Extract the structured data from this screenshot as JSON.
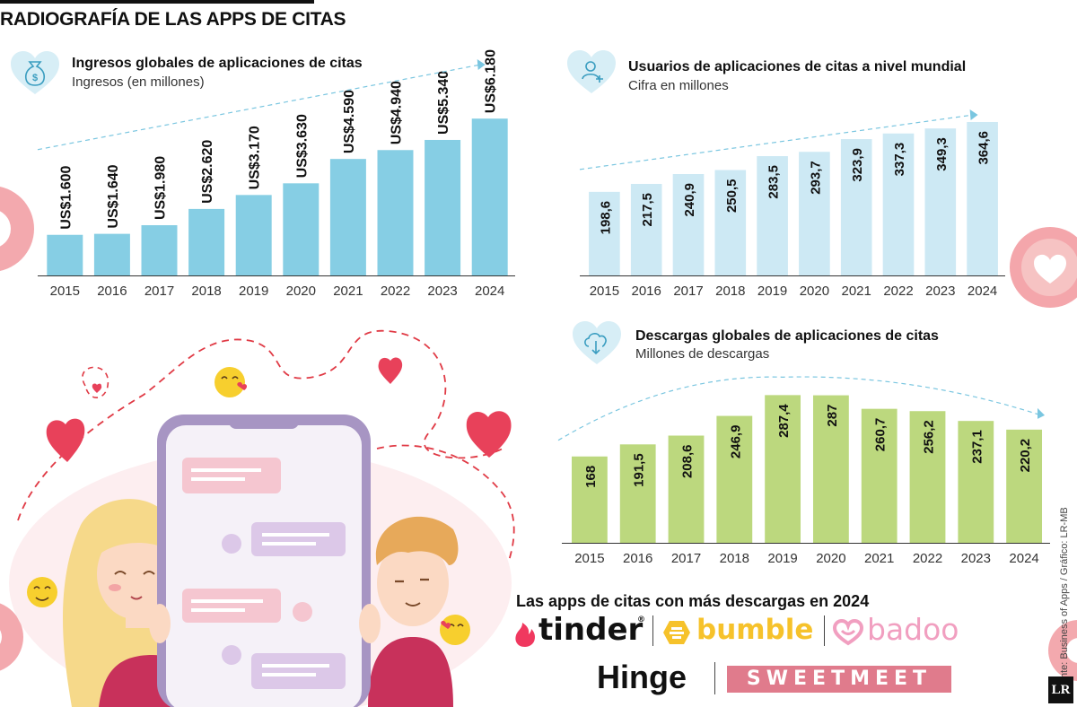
{
  "page": {
    "title": "RADIOGRAFÍA DE LAS APPS DE CITAS",
    "source": "Fuente: Business of Apps / Gráfico: LR-MB",
    "badge": "LR"
  },
  "colors": {
    "revenue": "#86cee4",
    "users": "#cde9f4",
    "downloads": "#bcd87e",
    "heart": "#e0324e",
    "icon_heart": "#d7eef6"
  },
  "icons": {
    "revenue": "money-bag-icon",
    "users": "user-add-icon",
    "downloads": "cloud-download-icon"
  },
  "chart_data": [
    {
      "type": "bar",
      "title": "Ingresos globales de aplicaciones de citas",
      "subtitle": "Ingresos (en  millones)",
      "categories": [
        "2015",
        "2016",
        "2017",
        "2018",
        "2019",
        "2020",
        "2021",
        "2022",
        "2023",
        "2024"
      ],
      "values": [
        1600,
        1640,
        1980,
        2620,
        3170,
        3630,
        4590,
        4940,
        5340,
        6180
      ],
      "labels": [
        "US$1.600",
        "US$1.640",
        "US$1.980",
        "US$2.620",
        "US$3.170",
        "US$3.630",
        "US$4.590",
        "US$4.940",
        "US$5.340",
        "US$6.180"
      ],
      "ylim": [
        0,
        10500
      ],
      "grid": false,
      "trend": "up"
    },
    {
      "type": "bar",
      "title": "Usuarios de aplicaciones de citas a nivel mundial",
      "subtitle": "Cifra en millones",
      "categories": [
        "2015",
        "2016",
        "2017",
        "2018",
        "2019",
        "2020",
        "2021",
        "2022",
        "2023",
        "2024"
      ],
      "values": [
        198.6,
        217.5,
        240.9,
        250.5,
        283.5,
        293.7,
        323.9,
        337.3,
        349.3,
        364.6
      ],
      "labels": [
        "198,6",
        "217,5",
        "240,9",
        "250,5",
        "283,5",
        "293,7",
        "323,9",
        "337,3",
        "349,3",
        "364,6"
      ],
      "ylim": [
        0,
        420
      ],
      "grid": false,
      "trend": "up"
    },
    {
      "type": "bar",
      "title": "Descargas globales de aplicaciones de citas",
      "subtitle": "Millones de descargas",
      "categories": [
        "2015",
        "2016",
        "2017",
        "2018",
        "2019",
        "2020",
        "2021",
        "2022",
        "2023",
        "2024"
      ],
      "values": [
        168,
        191.5,
        208.6,
        246.9,
        287.4,
        287,
        260.7,
        256.2,
        237.1,
        220.2
      ],
      "labels": [
        "168",
        "191,5",
        "208,6",
        "246,9",
        "287,4",
        "287",
        "260,7",
        "256,2",
        "237,1",
        "220,2"
      ],
      "ylim": [
        0,
        295
      ],
      "grid": false,
      "trend": "up-then-down"
    }
  ],
  "apps": {
    "title": "Las apps de citas con más descargas en 2024",
    "list": [
      {
        "name": "tinder",
        "mark": "®",
        "color": "#f0385f"
      },
      {
        "name": "bumble",
        "color": "#f6c22b"
      },
      {
        "name": "badoo",
        "color": "#f19fc0"
      },
      {
        "name": "Hinge",
        "color": "#111111"
      },
      {
        "name": "SWEETMEET",
        "color": "#e07b8c"
      }
    ]
  }
}
